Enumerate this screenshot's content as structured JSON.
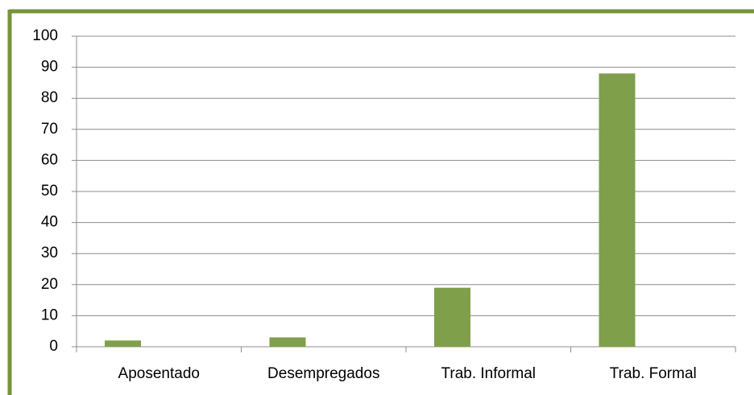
{
  "chart_data": {
    "type": "bar",
    "categories": [
      "Aposentado",
      "Desempregados",
      "Trab. Informal",
      "Trab. Formal"
    ],
    "values": [
      2,
      3,
      19,
      88
    ],
    "color": "#7f9f4a",
    "ylim": [
      0,
      100
    ],
    "yticks": [
      0,
      10,
      20,
      30,
      40,
      50,
      60,
      70,
      80,
      90,
      100
    ],
    "grid": true
  }
}
